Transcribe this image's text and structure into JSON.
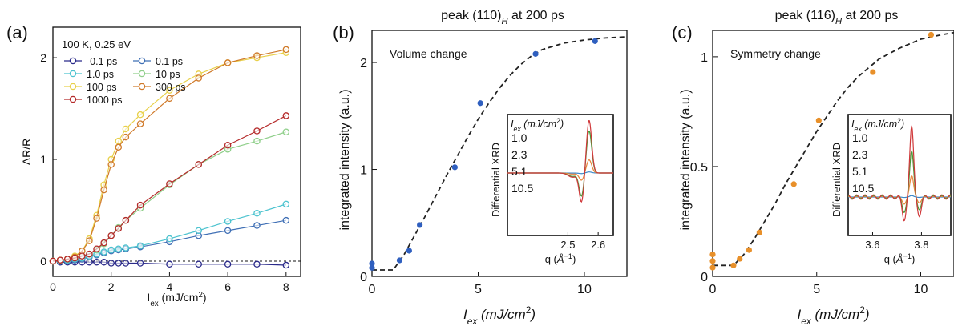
{
  "chart_data": [
    {
      "panel_label": "(a)",
      "type": "line",
      "title": "",
      "xlabel": "I",
      "xlabel_sub": "ex",
      "xlabel_unit": " (mJ/cm",
      "xlabel_sup": "2",
      "xlabel_end": ")",
      "ylabel": "ΔR/R",
      "xlim": [
        0,
        8.5
      ],
      "ylim": [
        -0.15,
        2.3
      ],
      "xticks": [
        0,
        2,
        4,
        6,
        8
      ],
      "yticks": [
        0,
        1,
        2
      ],
      "legend_title": "100 K, 0.25 eV",
      "reference_line_y": 0,
      "x": [
        0,
        0.25,
        0.5,
        0.75,
        1.0,
        1.25,
        1.5,
        1.75,
        2.0,
        2.25,
        2.5,
        3.0,
        4.0,
        5.0,
        6.0,
        7.0,
        8.0
      ],
      "series": [
        {
          "name": "-0.1 ps",
          "color": "#2a2a8a",
          "values": [
            0,
            -0.01,
            -0.01,
            -0.01,
            -0.01,
            -0.01,
            -0.01,
            -0.01,
            -0.02,
            -0.02,
            -0.02,
            -0.02,
            -0.03,
            -0.03,
            -0.03,
            -0.03,
            -0.04
          ]
        },
        {
          "name": "0.1 ps",
          "color": "#3f6fb5",
          "values": [
            0,
            0.0,
            0.0,
            0.01,
            0.02,
            0.04,
            0.06,
            0.08,
            0.1,
            0.11,
            0.12,
            0.14,
            0.19,
            0.25,
            0.3,
            0.35,
            0.4
          ]
        },
        {
          "name": "1.0 ps",
          "color": "#4cc3cf",
          "values": [
            0,
            0.0,
            0.01,
            0.02,
            0.03,
            0.05,
            0.07,
            0.09,
            0.11,
            0.12,
            0.13,
            0.15,
            0.22,
            0.3,
            0.39,
            0.47,
            0.56
          ]
        },
        {
          "name": "10 ps",
          "color": "#8fcf8a",
          "values": [
            0,
            0.01,
            0.02,
            0.03,
            0.05,
            0.07,
            0.11,
            0.17,
            0.25,
            0.33,
            0.4,
            0.52,
            0.75,
            0.95,
            1.1,
            1.18,
            1.27
          ]
        },
        {
          "name": "100 ps",
          "color": "#e8d04a",
          "values": [
            0,
            0.01,
            0.02,
            0.05,
            0.1,
            0.22,
            0.45,
            0.75,
            1.0,
            1.18,
            1.3,
            1.44,
            1.68,
            1.84,
            1.95,
            2.0,
            2.05
          ]
        },
        {
          "name": "300 ps",
          "color": "#d07a2a",
          "values": [
            0,
            0.01,
            0.02,
            0.04,
            0.1,
            0.2,
            0.42,
            0.7,
            0.95,
            1.12,
            1.22,
            1.35,
            1.6,
            1.8,
            1.95,
            2.02,
            2.08
          ]
        },
        {
          "name": "1000 ps",
          "color": "#b52a2a",
          "values": [
            0,
            0.01,
            0.02,
            0.03,
            0.05,
            0.07,
            0.12,
            0.18,
            0.25,
            0.32,
            0.4,
            0.55,
            0.76,
            0.95,
            1.14,
            1.28,
            1.43
          ]
        }
      ]
    },
    {
      "panel_label": "(b)",
      "type": "scatter",
      "title": "peak (110)",
      "title_sub": "H",
      "title_end": " at 200 ps",
      "annotation": "Volume change",
      "xlabel": "I",
      "xlabel_sub": "ex",
      "xlabel_unit": " (mJ/cm",
      "xlabel_sup": "2",
      "xlabel_end": ")",
      "ylabel": "integrated intensity (a.u.)",
      "xlim": [
        0,
        12
      ],
      "ylim": [
        0,
        2.3
      ],
      "xticks": [
        0,
        5,
        10
      ],
      "yticks": [
        0,
        1,
        2
      ],
      "points_color": "#2f5fbf",
      "points": {
        "x": [
          0,
          0,
          1.3,
          1.75,
          2.25,
          3.9,
          5.1,
          7.7,
          10.5
        ],
        "y": [
          0.08,
          0.12,
          0.15,
          0.24,
          0.48,
          1.02,
          1.62,
          2.08,
          2.2
        ]
      },
      "fit": {
        "x": [
          0,
          1.0,
          1.5,
          2.0,
          2.5,
          3.0,
          3.5,
          4.0,
          4.5,
          5.0,
          5.5,
          6.0,
          6.5,
          7.0,
          7.5,
          8.0,
          9.0,
          10.0,
          11.0,
          12.0
        ],
        "y": [
          0.06,
          0.06,
          0.2,
          0.38,
          0.56,
          0.75,
          0.94,
          1.12,
          1.3,
          1.47,
          1.62,
          1.76,
          1.88,
          1.98,
          2.06,
          2.12,
          2.18,
          2.21,
          2.23,
          2.24
        ]
      },
      "inset": {
        "ylabel": "Differential XRD",
        "xlabel": "q (",
        "xlabel_unit": "Å",
        "xlabel_sup": "−1",
        "xlabel_end": ")",
        "xlim": [
          2.3,
          2.65
        ],
        "xticks": [
          2.5,
          2.6
        ],
        "legend_title": "I",
        "legend_title_sub": "ex",
        "legend_title_unit": " (mJ/cm",
        "legend_title_sup": "2",
        "legend_title_end": ")",
        "series": [
          {
            "name": "1.0",
            "color": "#3a86c8",
            "amp": 0.02
          },
          {
            "name": "2.3",
            "color": "#e8843a",
            "amp": 0.25
          },
          {
            "name": "5.1",
            "color": "#4a9a3a",
            "amp": 0.8
          },
          {
            "name": "10.5",
            "color": "#d0383a",
            "amp": 1.0
          }
        ],
        "peak_pos": 2.57,
        "dip_pos": 2.545
      }
    },
    {
      "panel_label": "(c)",
      "type": "scatter",
      "title": "peak (116)",
      "title_sub": "H",
      "title_end": " at 200 ps",
      "annotation": "Symmetry change",
      "xlabel": "I",
      "xlabel_sub": "ex",
      "xlabel_unit": " (mJ/cm",
      "xlabel_sup": "2",
      "xlabel_end": ")",
      "ylabel": "integrated intensity (a.u.)",
      "xlim": [
        0,
        11.6
      ],
      "ylim": [
        0,
        1.12
      ],
      "xticks": [
        0,
        5,
        10
      ],
      "yticks": [
        0,
        0.5,
        1
      ],
      "ytick_labels": [
        "0",
        "0.5",
        "1"
      ],
      "points_color": "#e8902a",
      "points": {
        "x": [
          0,
          0,
          0,
          1.0,
          1.3,
          1.75,
          2.25,
          3.9,
          5.1,
          7.7,
          10.5
        ],
        "y": [
          0.04,
          0.07,
          0.1,
          0.05,
          0.08,
          0.12,
          0.2,
          0.42,
          0.71,
          0.93,
          1.1
        ]
      },
      "fit": {
        "x": [
          0,
          1.0,
          1.5,
          2.0,
          2.5,
          3.0,
          3.5,
          4.0,
          4.5,
          5.0,
          5.5,
          6.0,
          6.5,
          7.0,
          7.5,
          8.0,
          9.0,
          10.0,
          11.0,
          11.6
        ],
        "y": [
          0.05,
          0.05,
          0.1,
          0.17,
          0.25,
          0.33,
          0.42,
          0.5,
          0.58,
          0.66,
          0.73,
          0.8,
          0.86,
          0.91,
          0.95,
          0.99,
          1.04,
          1.08,
          1.1,
          1.11
        ]
      },
      "inset": {
        "ylabel": "Differential XRD",
        "xlabel": "q (",
        "xlabel_unit": "Å",
        "xlabel_sup": "−1",
        "xlabel_end": ")",
        "xlim": [
          3.5,
          3.92
        ],
        "xticks": [
          3.6,
          3.8
        ],
        "legend_title": "I",
        "legend_title_sub": "ex",
        "legend_title_unit": " (mJ/cm",
        "legend_title_sup": "2",
        "legend_title_end": ")",
        "series": [
          {
            "name": "1.0",
            "color": "#3a86c8",
            "amp": 0.02
          },
          {
            "name": "2.3",
            "color": "#e8843a",
            "amp": 0.3
          },
          {
            "name": "5.1",
            "color": "#4a9a3a",
            "amp": 0.65
          },
          {
            "name": "10.5",
            "color": "#d0383a",
            "amp": 1.0
          }
        ],
        "peak_pos": 3.76
      }
    }
  ]
}
